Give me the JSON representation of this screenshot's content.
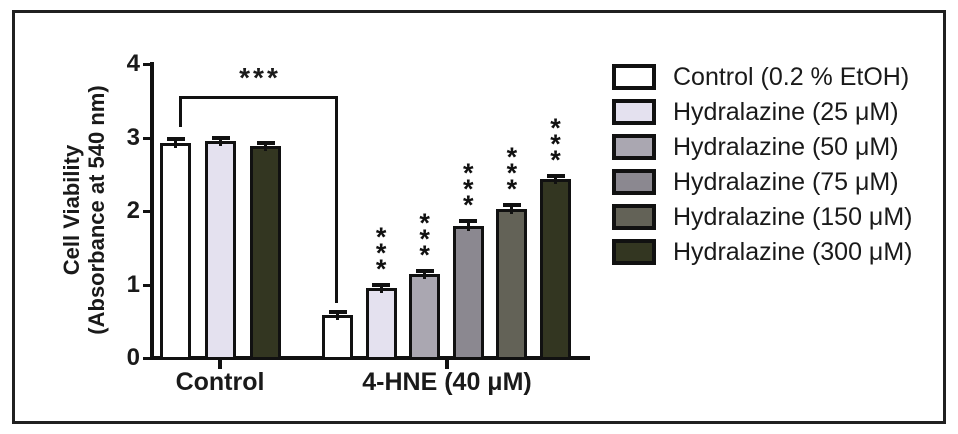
{
  "figure": {
    "frame_color": "#202020",
    "background": "#ffffff",
    "text_color": "#1a1a1a"
  },
  "chart_data": {
    "type": "bar",
    "title": "",
    "ylabel_line1": "Cell Viability",
    "ylabel_line2": "(Absorbance at 540 nm)",
    "xlabel": "",
    "ylim": [
      0,
      4
    ],
    "yticks": [
      0,
      1,
      2,
      3,
      4
    ],
    "grid": "off",
    "legend_position": "right",
    "legend": [
      {
        "label": "Control (0.2 % EtOH)",
        "color": "#ffffff"
      },
      {
        "label": "Hydralazine (25 μM)",
        "color": "#e4e1ef"
      },
      {
        "label": "Hydralazine (50 μM)",
        "color": "#aaa7b1"
      },
      {
        "label": "Hydralazine (75 μM)",
        "color": "#8b8890"
      },
      {
        "label": "Hydralazine (150 μM)",
        "color": "#636257"
      },
      {
        "label": "Hydralazine (300 μM)",
        "color": "#333621"
      }
    ],
    "groups": [
      {
        "label": "Control",
        "bars": [
          {
            "series_index": 0,
            "value": 2.92,
            "error": 0.06,
            "significance": ""
          },
          {
            "series_index": 1,
            "value": 2.95,
            "error": 0.05,
            "significance": ""
          },
          {
            "series_index": 5,
            "value": 2.88,
            "error": 0.05,
            "significance": ""
          }
        ]
      },
      {
        "label": "4-HNE (40 μM)",
        "bars": [
          {
            "series_index": 0,
            "value": 0.58,
            "error": 0.04,
            "significance": ""
          },
          {
            "series_index": 1,
            "value": 0.95,
            "error": 0.05,
            "significance": "***"
          },
          {
            "series_index": 2,
            "value": 1.14,
            "error": 0.05,
            "significance": "***"
          },
          {
            "series_index": 3,
            "value": 1.8,
            "error": 0.06,
            "significance": "***"
          },
          {
            "series_index": 4,
            "value": 2.03,
            "error": 0.05,
            "significance": "***"
          },
          {
            "series_index": 5,
            "value": 2.44,
            "error": 0.04,
            "significance": "***"
          }
        ]
      }
    ],
    "comparison_bracket": {
      "label": "***",
      "from": {
        "group_index": 0,
        "bar_index": 0
      },
      "to": {
        "group_index": 1,
        "bar_index": 0
      }
    }
  }
}
